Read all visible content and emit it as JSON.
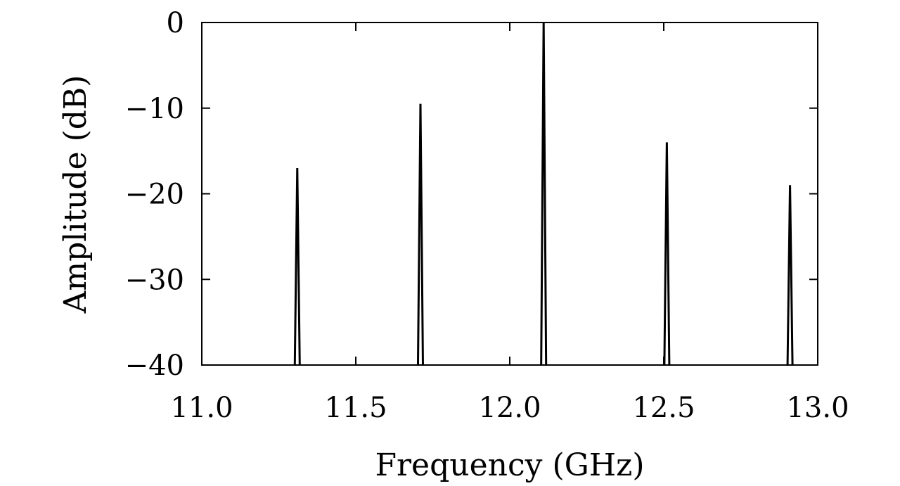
{
  "chart_data": {
    "type": "line",
    "xlabel": "Frequency (GHz)",
    "ylabel": "Amplitude (dB)",
    "xlim": [
      11.0,
      13.0
    ],
    "ylim": [
      -40,
      0
    ],
    "xticks": [
      11.0,
      11.5,
      12.0,
      12.5,
      13.0
    ],
    "xtick_labels": [
      "11.0",
      "11.5",
      "12.0",
      "12.5",
      "13.0"
    ],
    "yticks": [
      0,
      -10,
      -20,
      -30,
      -40
    ],
    "ytick_labels": [
      "0",
      "−10",
      "−20",
      "−30",
      "−40"
    ],
    "grid": false,
    "series": [
      {
        "peaks": [
          {
            "x": 11.31,
            "y": -17
          },
          {
            "x": 11.71,
            "y": -9.5
          },
          {
            "x": 12.11,
            "y": 0
          },
          {
            "x": 12.51,
            "y": -14
          },
          {
            "x": 12.91,
            "y": -19
          }
        ],
        "color": "#000000"
      }
    ]
  }
}
